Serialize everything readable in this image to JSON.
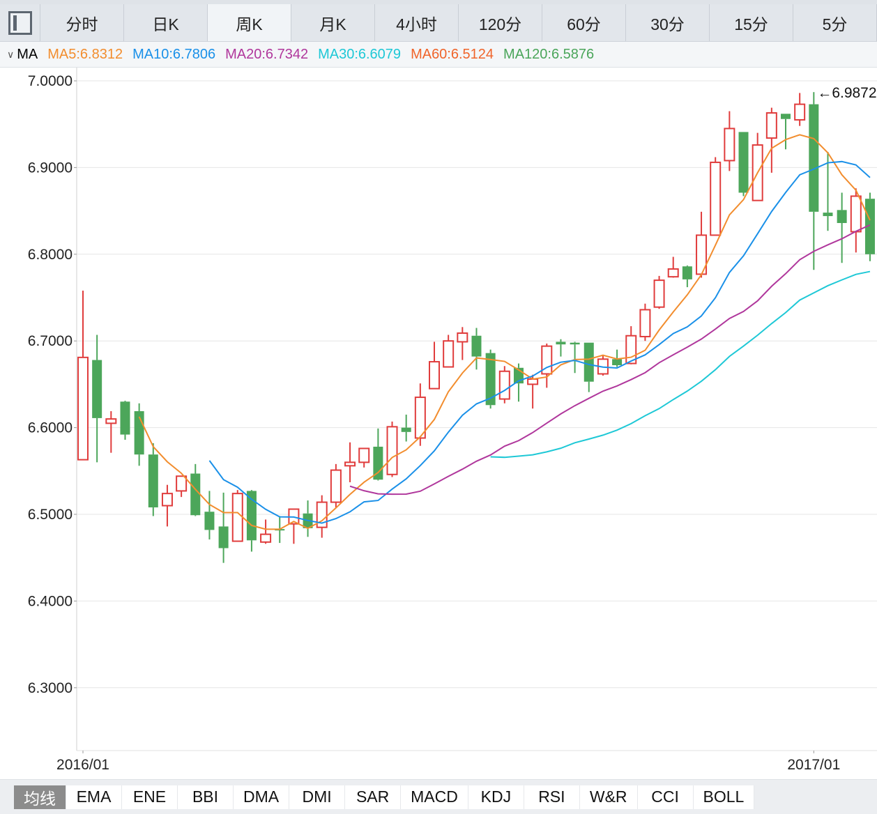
{
  "period_tabs": [
    "分时",
    "日K",
    "周K",
    "月K",
    "4小时",
    "120分",
    "60分",
    "30分",
    "15分",
    "5分"
  ],
  "active_period": 2,
  "ma_bar": {
    "label": "MA",
    "items": [
      {
        "text": "MA5:6.8312",
        "color": "#f28d2e"
      },
      {
        "text": "MA10:6.7806",
        "color": "#1a90e8"
      },
      {
        "text": "MA20:6.7342",
        "color": "#b0379c"
      },
      {
        "text": "MA30:6.6079",
        "color": "#1ec8d6"
      },
      {
        "text": "MA60:6.5124",
        "color": "#f0642a"
      },
      {
        "text": "MA120:6.5876",
        "color": "#4aa55a"
      }
    ]
  },
  "indicator_tabs": [
    "均线",
    "EMA",
    "ENE",
    "BBI",
    "DMA",
    "DMI",
    "SAR",
    "MACD",
    "KDJ",
    "RSI",
    "W&R",
    "CCI",
    "BOLL"
  ],
  "active_indicator": 0,
  "chart_data": {
    "type": "candlestick",
    "ylim": [
      6.228,
      7.015
    ],
    "yticks": [
      "7.0000",
      "6.9000",
      "6.8000",
      "6.7000",
      "6.6000",
      "6.5000",
      "6.4000",
      "6.3000"
    ],
    "xtick_labels": [
      {
        "index": 0,
        "label": "2016/01"
      },
      {
        "index": 52,
        "label": "2017/01"
      }
    ],
    "high_marker": {
      "index": 52,
      "label": "←6.9872"
    },
    "up_color": "#e03c3c",
    "down_color": "#4ca65a",
    "ma_periods": [
      {
        "n": 5,
        "color": "#f28d2e"
      },
      {
        "n": 10,
        "color": "#1a90e8"
      },
      {
        "n": 20,
        "color": "#b0379c"
      },
      {
        "n": 30,
        "color": "#1ec8d6"
      }
    ],
    "ohlc": [
      [
        6.563,
        6.758,
        6.563,
        6.681
      ],
      [
        6.678,
        6.707,
        6.56,
        6.611
      ],
      [
        6.605,
        6.619,
        6.571,
        6.61
      ],
      [
        6.63,
        6.631,
        6.586,
        6.592
      ],
      [
        6.619,
        6.628,
        6.556,
        6.569
      ],
      [
        6.569,
        6.582,
        6.498,
        6.508
      ],
      [
        6.51,
        6.534,
        6.486,
        6.524
      ],
      [
        6.527,
        6.544,
        6.52,
        6.544
      ],
      [
        6.547,
        6.558,
        6.498,
        6.499
      ],
      [
        6.503,
        6.527,
        6.471,
        6.482
      ],
      [
        6.486,
        6.525,
        6.444,
        6.461
      ],
      [
        6.469,
        6.528,
        6.469,
        6.524
      ],
      [
        6.527,
        6.528,
        6.457,
        6.47
      ],
      [
        6.468,
        6.494,
        6.466,
        6.477
      ],
      [
        6.483,
        6.498,
        6.467,
        6.482
      ],
      [
        6.489,
        6.506,
        6.466,
        6.506
      ],
      [
        6.501,
        6.516,
        6.474,
        6.484
      ],
      [
        6.485,
        6.522,
        6.473,
        6.514
      ],
      [
        6.514,
        6.558,
        6.508,
        6.551
      ],
      [
        6.556,
        6.583,
        6.537,
        6.56
      ],
      [
        6.56,
        6.576,
        6.554,
        6.576
      ],
      [
        6.578,
        6.599,
        6.539,
        6.54
      ],
      [
        6.546,
        6.607,
        6.543,
        6.601
      ],
      [
        6.6,
        6.615,
        6.584,
        6.595
      ],
      [
        6.588,
        6.651,
        6.579,
        6.635
      ],
      [
        6.645,
        6.699,
        6.645,
        6.676
      ],
      [
        6.67,
        6.707,
        6.67,
        6.7
      ],
      [
        6.699,
        6.716,
        6.678,
        6.709
      ],
      [
        6.706,
        6.715,
        6.667,
        6.682
      ],
      [
        6.686,
        6.69,
        6.622,
        6.626
      ],
      [
        6.633,
        6.671,
        6.628,
        6.665
      ],
      [
        6.669,
        6.674,
        6.63,
        6.651
      ],
      [
        6.65,
        6.661,
        6.622,
        6.656
      ],
      [
        6.662,
        6.697,
        6.646,
        6.694
      ],
      [
        6.699,
        6.702,
        6.682,
        6.696
      ],
      [
        6.698,
        6.699,
        6.663,
        6.696
      ],
      [
        6.698,
        6.698,
        6.641,
        6.653
      ],
      [
        6.662,
        6.684,
        6.66,
        6.679
      ],
      [
        6.679,
        6.69,
        6.67,
        6.672
      ],
      [
        6.674,
        6.717,
        6.673,
        6.706
      ],
      [
        6.705,
        6.743,
        6.7,
        6.736
      ],
      [
        6.739,
        6.775,
        6.737,
        6.77
      ],
      [
        6.774,
        6.797,
        6.773,
        6.783
      ],
      [
        6.786,
        6.787,
        6.762,
        6.771
      ],
      [
        6.777,
        6.849,
        6.773,
        6.822
      ],
      [
        6.822,
        6.912,
        6.822,
        6.906
      ],
      [
        6.908,
        6.965,
        6.896,
        6.945
      ],
      [
        6.941,
        6.941,
        6.867,
        6.871
      ],
      [
        6.862,
        6.94,
        6.862,
        6.926
      ],
      [
        6.934,
        6.969,
        6.894,
        6.963
      ],
      [
        6.962,
        6.962,
        6.921,
        6.956
      ],
      [
        6.955,
        6.986,
        6.948,
        6.973
      ],
      [
        6.973,
        6.987,
        6.782,
        6.849
      ],
      [
        6.848,
        6.918,
        6.827,
        6.844
      ],
      [
        6.851,
        6.871,
        6.79,
        6.836
      ],
      [
        6.826,
        6.876,
        6.802,
        6.867
      ],
      [
        6.864,
        6.871,
        6.792,
        6.8
      ]
    ]
  }
}
